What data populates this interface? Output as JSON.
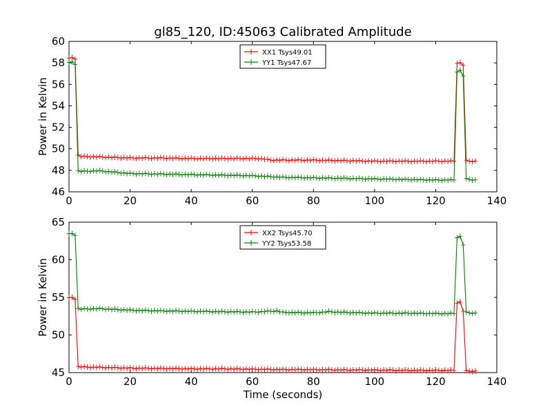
{
  "title": "gl85_120, ID:45063 Calibrated Amplitude",
  "xlabel": "Time (seconds)",
  "colors": {
    "red": "#ff0000",
    "green": "#007f00"
  },
  "chart_data": [
    {
      "type": "line",
      "ylabel": "Power in Kelvin",
      "xlim": [
        0,
        140
      ],
      "ylim": [
        46,
        60
      ],
      "xticks": [
        "0",
        "20",
        "40",
        "60",
        "80",
        "100",
        "120",
        "140"
      ],
      "yticks": [
        "46",
        "48",
        "50",
        "52",
        "54",
        "56",
        "58",
        "60"
      ],
      "legend_position": "top-center",
      "series": [
        {
          "name": "XX1 Tsys49.01",
          "color": "red",
          "x": [
            0,
            1,
            2,
            3,
            4,
            10,
            20,
            30,
            40,
            50,
            60,
            62,
            64,
            66,
            70,
            80,
            90,
            100,
            110,
            120,
            126,
            127,
            128,
            129,
            130,
            131,
            133
          ],
          "y": [
            58.4,
            58.5,
            58.4,
            49.4,
            49.3,
            49.25,
            49.15,
            49.15,
            49.1,
            49.1,
            49.1,
            49.1,
            49.05,
            48.95,
            48.95,
            48.95,
            48.9,
            48.85,
            48.85,
            48.85,
            48.85,
            58.0,
            58.0,
            57.8,
            48.9,
            48.85,
            48.85
          ]
        },
        {
          "name": "YY1 Tsys47.67",
          "color": "green",
          "x": [
            0,
            1,
            2,
            3,
            4,
            10,
            20,
            30,
            40,
            50,
            60,
            70,
            80,
            90,
            100,
            110,
            120,
            126,
            127,
            128,
            129,
            130,
            131,
            133
          ],
          "y": [
            58.0,
            58.1,
            57.9,
            47.95,
            47.9,
            47.95,
            47.7,
            47.65,
            47.6,
            47.55,
            47.5,
            47.35,
            47.3,
            47.25,
            47.2,
            47.15,
            47.1,
            47.1,
            57.2,
            57.3,
            56.8,
            47.2,
            47.15,
            47.1
          ]
        }
      ]
    },
    {
      "type": "line",
      "ylabel": "Power in Kelvin",
      "xlabel": "Time (seconds)",
      "xlim": [
        0,
        140
      ],
      "ylim": [
        45,
        65
      ],
      "xticks": [
        "0",
        "20",
        "40",
        "60",
        "80",
        "100",
        "120",
        "140"
      ],
      "yticks": [
        "45",
        "50",
        "55",
        "60",
        "65"
      ],
      "legend_position": "top-center",
      "series": [
        {
          "name": "XX2 Tsys45.70",
          "color": "red",
          "x": [
            0,
            1,
            2,
            3,
            4,
            10,
            20,
            30,
            40,
            50,
            60,
            70,
            80,
            90,
            100,
            110,
            120,
            126,
            127,
            128,
            129,
            130,
            131,
            133
          ],
          "y": [
            54.9,
            55.0,
            54.8,
            45.8,
            45.75,
            45.7,
            45.6,
            45.55,
            45.5,
            45.5,
            45.45,
            45.4,
            45.4,
            45.35,
            45.35,
            45.3,
            45.3,
            45.3,
            54.3,
            54.4,
            53.2,
            45.2,
            45.2,
            45.2
          ]
        },
        {
          "name": "YY2 Tsys53.58",
          "color": "green",
          "x": [
            0,
            1,
            2,
            3,
            4,
            10,
            20,
            30,
            40,
            50,
            60,
            68,
            70,
            80,
            85,
            90,
            100,
            110,
            120,
            126,
            127,
            128,
            129,
            130,
            131,
            133
          ],
          "y": [
            63.4,
            63.5,
            63.3,
            53.5,
            53.45,
            53.5,
            53.3,
            53.2,
            53.15,
            53.1,
            53.05,
            53.2,
            53.0,
            52.95,
            53.1,
            53.0,
            52.9,
            52.9,
            52.85,
            52.85,
            63.0,
            63.1,
            62.0,
            53.0,
            52.95,
            52.9
          ]
        }
      ]
    }
  ]
}
